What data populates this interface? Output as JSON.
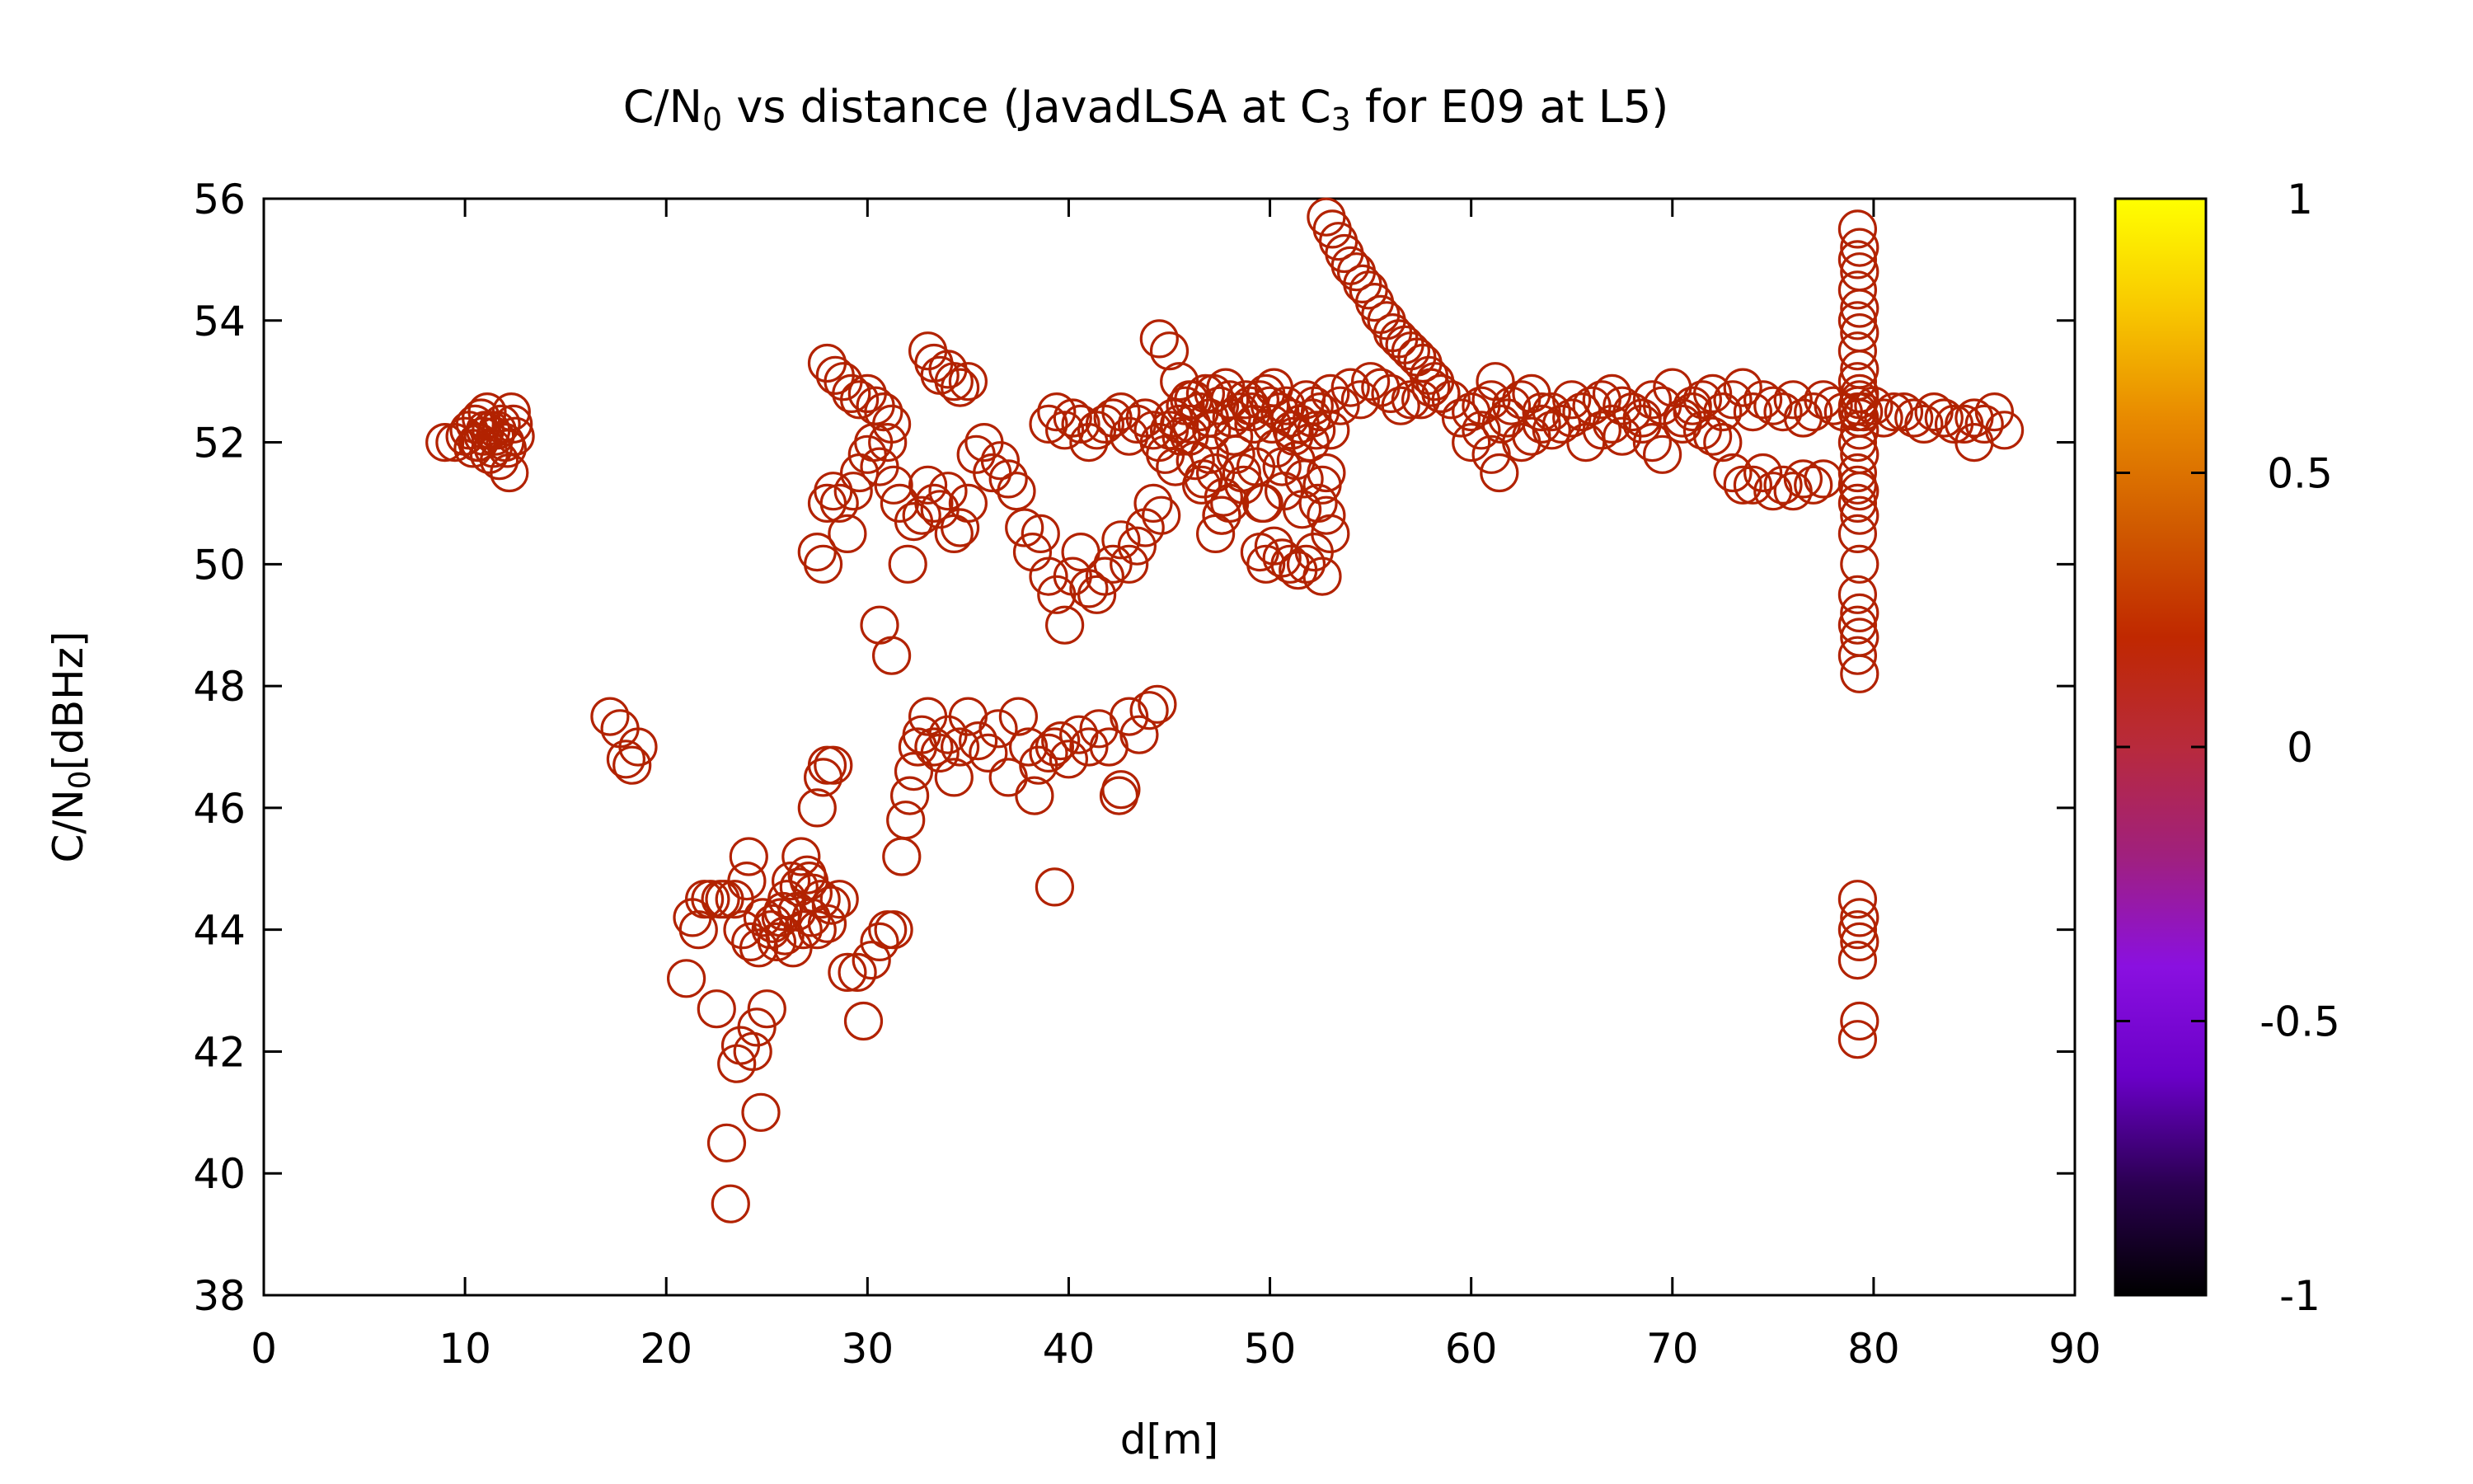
{
  "chart_data": {
    "type": "scatter",
    "title": {
      "pre": "C/N",
      "sub": "0",
      "mid": " vs distance (JavadLSA at C",
      "sub2": "3",
      "post": " for E09 at L5)"
    },
    "xlabel": "d[m]",
    "ylabel": {
      "pre": "C/N",
      "sub": "0",
      "post": "[dBHz]"
    },
    "xlim": [
      0,
      90
    ],
    "ylim": [
      38,
      56
    ],
    "xticks": [
      0,
      10,
      20,
      30,
      40,
      50,
      60,
      70,
      80,
      90
    ],
    "yticks": [
      38,
      40,
      42,
      44,
      46,
      48,
      50,
      52,
      54,
      56
    ],
    "colorbar": {
      "range": [
        -1,
        1
      ],
      "ticks": [
        "1",
        "0.5",
        "0",
        "-0.5",
        "-1"
      ],
      "tick_values": [
        1,
        0.5,
        0,
        -0.5,
        -1
      ],
      "palette": [
        "#000000",
        "#2a0050",
        "#6a00c8",
        "#8a10e0",
        "#a0207e",
        "#b82a3c",
        "#c02800",
        "#d05a00",
        "#e88a00",
        "#f8c800",
        "#ffff00"
      ]
    },
    "marker": "open-circle",
    "marker_color": "#b22200",
    "grid": false,
    "legend": "none",
    "series": [
      {
        "x": [
          9.0,
          9.5,
          10.0,
          10.2,
          10.5,
          10.7,
          11.0,
          11.2,
          11.5,
          11.8,
          12.0,
          12.3,
          12.5,
          10.4,
          10.8,
          11.3,
          11.7,
          12.1,
          10.6,
          11.1,
          11.6,
          12.2,
          12.4,
          10.9,
          11.4
        ],
        "y": [
          52.0,
          52.0,
          52.1,
          52.2,
          52.3,
          52.0,
          52.2,
          51.8,
          52.1,
          52.3,
          52.0,
          52.5,
          52.1,
          51.9,
          52.4,
          52.2,
          51.7,
          51.9,
          52.0,
          52.5,
          52.2,
          51.5,
          52.3,
          52.1,
          51.9
        ]
      },
      {
        "x": [
          17.2,
          17.7,
          18.0,
          18.3,
          18.6
        ],
        "y": [
          47.5,
          47.3,
          46.8,
          46.7,
          47.0
        ]
      },
      {
        "x": [
          21.0,
          21.3,
          21.6,
          21.9,
          22.2,
          22.5,
          22.7,
          23.0,
          23.2,
          23.5,
          23.7,
          24.0,
          24.1,
          24.3,
          24.5,
          24.7,
          25.0,
          25.2,
          25.5,
          25.7,
          26.0,
          26.2,
          26.5,
          26.7,
          27.0,
          27.2,
          27.5,
          27.7,
          28.0,
          28.2,
          23.8,
          24.2,
          24.6,
          25.3,
          25.8,
          26.3,
          26.8,
          27.3,
          22.9,
          23.4,
          24.8,
          25.9,
          26.6,
          27.1
        ],
        "y": [
          43.2,
          44.2,
          44.0,
          44.5,
          44.5,
          42.7,
          44.5,
          40.5,
          39.5,
          41.8,
          42.1,
          44.8,
          45.2,
          42.0,
          42.4,
          41.0,
          42.7,
          44.0,
          43.8,
          44.2,
          44.5,
          44.8,
          44.3,
          45.2,
          44.9,
          44.2,
          44.0,
          44.5,
          44.1,
          44.4,
          44.0,
          43.8,
          43.7,
          44.1,
          44.3,
          43.7,
          44.0,
          44.6,
          44.5,
          44.5,
          44.2,
          43.9,
          44.7,
          44.8
        ]
      },
      {
        "x": [
          27.5,
          27.8,
          28.0,
          28.3,
          28.6,
          29.0,
          29.5,
          29.8,
          30.2,
          30.6,
          31.0,
          31.3
        ],
        "y": [
          46.0,
          46.5,
          46.7,
          46.7,
          44.5,
          43.3,
          43.3,
          42.5,
          43.5,
          43.8,
          44.0,
          44.0
        ]
      },
      {
        "x": [
          30.6,
          31.2,
          31.7,
          31.9,
          32.1,
          32.3,
          32.5,
          32.7,
          33.0,
          33.3,
          33.6,
          34.0,
          34.3,
          34.6,
          35.0,
          35.5,
          36.0,
          36.5,
          37.0,
          37.5,
          38.0,
          38.5,
          39.0,
          39.3,
          39.6,
          40.0,
          40.5,
          41.0,
          41.5,
          42.0,
          42.5,
          43.0,
          43.5,
          44.0,
          44.4,
          38.3,
          42.6,
          39.3
        ],
        "y": [
          49.0,
          48.5,
          45.2,
          45.8,
          46.2,
          46.6,
          47.0,
          47.2,
          47.5,
          47.0,
          46.9,
          47.2,
          46.5,
          47.0,
          47.5,
          47.1,
          46.9,
          47.3,
          46.5,
          47.5,
          47.0,
          46.7,
          46.9,
          47.0,
          47.1,
          46.8,
          47.2,
          47.0,
          47.3,
          47.0,
          46.2,
          47.5,
          47.2,
          47.6,
          47.7,
          46.2,
          46.3,
          44.7
        ]
      },
      {
        "x": [
          27.5,
          27.8,
          28.0,
          28.3,
          28.6,
          29.0,
          29.3,
          29.6,
          30.0,
          30.3,
          30.6,
          31.0,
          31.3,
          31.6,
          32.0,
          32.3,
          32.7,
          33.0,
          33.3,
          33.6,
          34.0,
          34.3,
          34.6,
          35.0,
          35.4,
          35.8,
          36.2,
          36.6,
          37.0,
          37.4,
          37.8,
          38.2,
          38.6,
          39.0,
          39.4,
          39.8,
          40.2,
          40.6,
          41.0,
          41.4,
          41.8,
          42.2,
          42.6,
          43.0,
          43.4,
          43.8,
          44.2,
          44.6
        ],
        "y": [
          50.2,
          50.0,
          51.0,
          51.2,
          51.0,
          50.5,
          51.2,
          51.5,
          51.8,
          52.0,
          51.6,
          52.0,
          51.3,
          51.0,
          50.0,
          50.7,
          50.8,
          51.3,
          51.0,
          50.9,
          51.2,
          50.5,
          50.6,
          51.0,
          51.8,
          52.0,
          51.5,
          51.7,
          51.4,
          51.2,
          50.6,
          50.2,
          50.5,
          49.8,
          49.5,
          49.0,
          49.8,
          50.2,
          49.6,
          49.5,
          49.8,
          50.0,
          50.4,
          50.0,
          50.3,
          50.6,
          51.0,
          50.8
        ]
      },
      {
        "x": [
          28.0,
          28.4,
          28.8,
          29.2,
          29.6,
          30.0,
          30.4,
          30.8,
          31.2,
          33.0,
          33.3,
          33.6,
          34.0,
          34.3,
          34.6,
          35.0,
          39.0,
          39.4,
          39.8,
          40.2,
          40.6,
          41.0,
          41.4,
          41.8,
          42.2,
          42.6,
          43.0,
          43.4,
          43.8,
          44.2
        ],
        "y": [
          53.3,
          53.1,
          53.0,
          52.8,
          52.7,
          52.8,
          52.6,
          52.5,
          52.3,
          53.5,
          53.3,
          53.1,
          53.2,
          53.0,
          52.9,
          53.0,
          52.3,
          52.5,
          52.2,
          52.4,
          52.3,
          52.0,
          52.2,
          52.3,
          52.4,
          52.5,
          52.1,
          52.3,
          52.4,
          52.2
        ]
      },
      {
        "x": [
          44.5,
          45.0,
          45.5,
          46.0,
          46.5,
          47.0,
          47.5,
          48.0,
          48.5,
          49.0,
          49.5,
          50.0,
          50.5,
          51.0,
          51.5,
          52.0,
          52.5,
          53.0,
          44.8,
          45.3,
          45.8,
          46.3,
          46.8,
          47.3,
          47.8,
          48.3,
          48.8,
          49.3,
          49.8,
          50.3,
          50.8,
          51.3,
          51.8,
          52.3,
          52.8,
          45.2,
          46.2,
          47.2,
          48.2,
          49.2,
          50.2,
          51.2,
          52.2,
          46.7,
          47.7,
          48.7,
          49.7,
          50.7,
          51.7,
          45.6,
          46.6,
          47.6,
          48.6,
          49.6,
          50.6,
          51.6,
          52.6,
          46.1,
          47.1,
          48.1,
          49.1,
          50.1,
          51.1,
          52.1
        ],
        "y": [
          52.0,
          52.2,
          52.3,
          52.1,
          52.5,
          52.4,
          52.6,
          52.7,
          52.5,
          52.6,
          52.7,
          52.6,
          52.5,
          52.4,
          52.3,
          52.0,
          52.5,
          52.2,
          51.8,
          51.6,
          52.6,
          51.7,
          52.8,
          51.5,
          52.9,
          51.8,
          52.7,
          51.6,
          52.8,
          51.9,
          52.6,
          51.7,
          52.7,
          52.2,
          51.5,
          52.4,
          52.7,
          52.8,
          52.1,
          52.3,
          52.9,
          52.1,
          52.6,
          51.4,
          51.1,
          51.3,
          51.0,
          51.2,
          51.4,
          52.1,
          51.3,
          50.8,
          51.5,
          51.0,
          51.6,
          50.9,
          51.3,
          52.3,
          52.2,
          52.4,
          52.5,
          52.3,
          52.2,
          52.4
        ]
      },
      {
        "x": [
          44.5,
          45.0,
          45.5,
          46.0,
          46.5,
          47.0,
          47.3,
          47.6,
          48.0,
          49.5,
          49.8,
          50.2,
          50.6,
          51.0,
          51.4,
          51.8,
          52.2,
          52.6,
          53.0,
          52.4,
          52.8
        ],
        "y": [
          53.7,
          53.5,
          53.0,
          52.7,
          52.5,
          51.8,
          50.5,
          50.8,
          51.0,
          50.2,
          50.0,
          50.3,
          50.1,
          50.0,
          49.9,
          50.0,
          50.2,
          49.8,
          50.5,
          51.0,
          50.8
        ]
      },
      {
        "x": [
          52.8,
          53.1,
          53.4,
          53.7,
          54.0,
          54.3,
          54.6,
          54.9,
          55.2,
          55.5,
          55.8,
          56.1,
          56.4,
          56.7,
          57.0,
          57.3,
          57.6,
          57.9,
          58.2,
          58.5
        ],
        "y": [
          55.7,
          55.5,
          55.3,
          55.1,
          54.9,
          54.8,
          54.6,
          54.5,
          54.3,
          54.1,
          54.0,
          53.8,
          53.7,
          53.6,
          53.5,
          53.4,
          53.3,
          53.1,
          53.0,
          52.8
        ]
      },
      {
        "x": [
          53.0,
          54.0,
          55.0,
          56.0,
          57.0,
          58.0,
          59.0,
          60.0,
          61.0,
          62.0,
          63.0,
          64.0,
          65.0,
          66.0,
          67.0,
          68.0,
          69.0,
          70.0,
          71.0,
          72.0,
          73.0,
          74.0,
          75.0,
          76.0,
          77.0,
          78.0,
          80.0,
          81.0,
          82.0,
          83.0,
          84.0,
          85.0,
          85.5,
          86.0,
          53.5,
          54.5,
          55.5,
          56.5,
          57.5,
          58.5,
          59.5,
          60.5,
          61.5,
          62.5,
          63.5,
          64.5,
          65.5,
          66.5,
          67.5,
          68.5,
          69.5,
          70.5,
          71.5,
          72.5,
          73.5,
          74.5,
          75.5,
          76.5,
          77.5,
          78.5,
          79.5,
          80.5,
          81.5,
          82.5,
          83.5,
          84.5,
          86.5
        ],
        "y": [
          52.8,
          52.9,
          53.0,
          52.8,
          52.7,
          52.9,
          52.7,
          52.5,
          52.7,
          52.6,
          52.8,
          52.5,
          52.7,
          52.6,
          52.8,
          52.5,
          52.7,
          52.9,
          52.6,
          52.8,
          52.7,
          52.5,
          52.6,
          52.7,
          52.5,
          52.6,
          52.6,
          52.5,
          52.4,
          52.5,
          52.3,
          52.4,
          52.3,
          52.5,
          52.6,
          52.7,
          52.9,
          52.6,
          52.7,
          52.8,
          52.4,
          52.6,
          52.3,
          52.7,
          52.5,
          52.3,
          52.5,
          52.7,
          52.6,
          52.4,
          52.6,
          52.4,
          52.7,
          52.5,
          52.9,
          52.7,
          52.5,
          52.4,
          52.7,
          52.5,
          52.5,
          52.4,
          52.5,
          52.3,
          52.4,
          52.3,
          52.2
        ]
      },
      {
        "x": [
          60.0,
          60.5,
          61.0,
          61.4,
          61.8,
          62.5,
          63.0,
          64.0,
          65.0,
          65.7,
          66.5,
          67.5,
          68.5,
          69.5,
          70.5,
          71.5,
          72.5,
          73.0,
          73.5,
          74.0,
          74.5,
          75.0,
          75.5,
          76.0,
          76.5,
          77.0,
          77.5,
          61.2,
          63.5,
          67.0,
          69.0,
          71.0,
          72.0,
          85.0
        ],
        "y": [
          52.0,
          52.2,
          51.8,
          51.5,
          52.4,
          52.0,
          52.1,
          52.2,
          52.4,
          52.0,
          52.2,
          52.1,
          52.3,
          51.8,
          52.3,
          52.2,
          52.0,
          51.5,
          51.3,
          51.3,
          51.5,
          51.2,
          51.3,
          51.2,
          51.4,
          51.3,
          51.4,
          53.0,
          52.3,
          52.3,
          52.0,
          52.5,
          52.1,
          52.0
        ]
      },
      {
        "x": [
          79.2,
          79.3,
          79.2,
          79.3,
          79.2,
          79.3,
          79.2,
          79.3,
          79.2,
          79.3,
          79.2,
          79.3,
          79.2,
          79.3,
          79.2,
          79.3,
          79.2,
          79.3,
          79.2,
          79.3,
          79.2,
          79.3,
          79.2,
          79.3,
          79.2,
          79.3,
          79.2,
          79.3,
          79.2,
          79.3,
          79.2,
          79.3,
          79.2,
          79.3,
          79.2,
          79.3,
          79.2,
          79.3,
          79.2
        ],
        "y": [
          55.5,
          55.2,
          55.0,
          54.8,
          54.5,
          54.2,
          54.0,
          53.8,
          53.5,
          53.2,
          53.0,
          52.8,
          52.5,
          52.2,
          52.0,
          51.8,
          51.5,
          51.2,
          51.0,
          50.8,
          50.5,
          50.0,
          49.5,
          49.2,
          49.0,
          48.8,
          48.5,
          48.2,
          44.5,
          44.2,
          44.0,
          43.8,
          43.5,
          42.5,
          42.2,
          52.7,
          52.6,
          52.4,
          51.3
        ]
      }
    ]
  }
}
